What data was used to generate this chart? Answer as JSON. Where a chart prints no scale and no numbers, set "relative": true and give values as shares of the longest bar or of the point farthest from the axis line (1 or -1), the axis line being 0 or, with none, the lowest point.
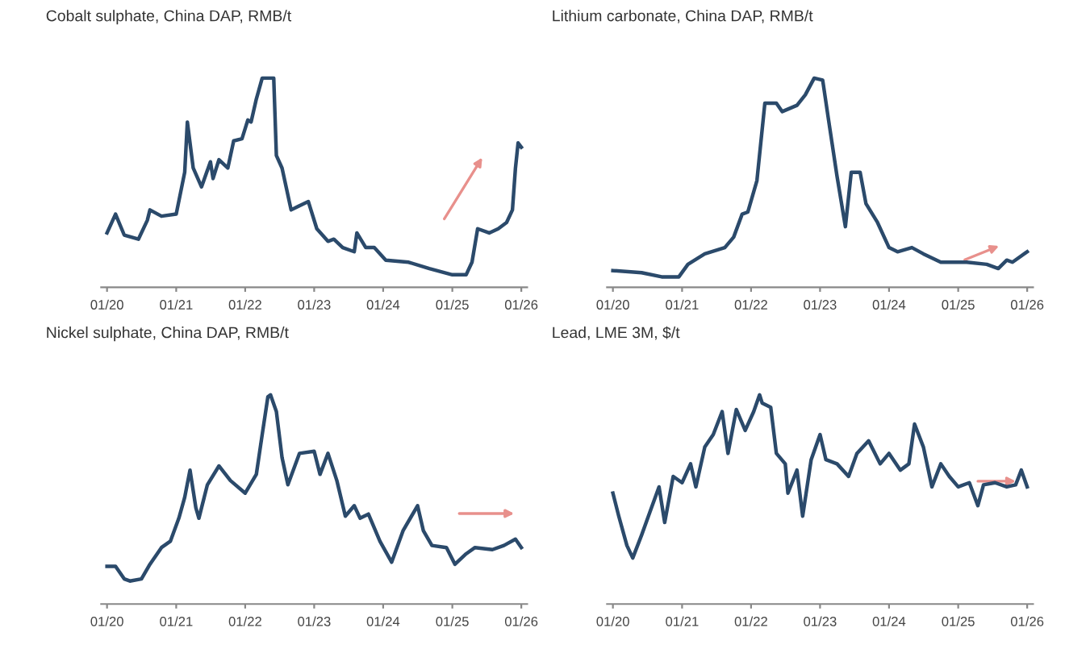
{
  "chart_data": [
    {
      "type": "line",
      "title": "Cobalt sulphate, China DAP, RMB/t",
      "relative": true,
      "xlim": [
        "2019-12-01",
        "2026-02-01"
      ],
      "xticks": [
        {
          "value": "2020-01-01",
          "label": "01/20"
        },
        {
          "value": "2021-01-01",
          "label": "01/21"
        },
        {
          "value": "2022-01-01",
          "label": "01/22"
        },
        {
          "value": "2023-01-01",
          "label": "01/23"
        },
        {
          "value": "2024-01-01",
          "label": "01/24"
        },
        {
          "value": "2025-01-01",
          "label": "01/25"
        },
        {
          "value": "2026-01-01",
          "label": "01/26"
        }
      ],
      "tick_labels": "x",
      "series": [
        {
          "color": "#2b4a6b",
          "x": [
            "2020-01-01",
            "2020-02-15",
            "2020-04-01",
            "2020-06-15",
            "2020-08-01",
            "2020-08-15",
            "2020-10-15",
            "2021-01-01",
            "2021-02-15",
            "2021-03-01",
            "2021-04-01",
            "2021-05-15",
            "2021-07-01",
            "2021-07-15",
            "2021-08-15",
            "2021-10-01",
            "2021-11-01",
            "2021-12-15",
            "2022-01-15",
            "2022-02-01",
            "2022-03-01",
            "2022-04-01",
            "2022-06-01",
            "2022-06-15",
            "2022-07-15",
            "2022-09-01",
            "2022-10-15",
            "2022-12-01",
            "2023-01-15",
            "2023-03-15",
            "2023-04-15",
            "2023-06-01",
            "2023-08-01",
            "2023-08-15",
            "2023-10-01",
            "2023-11-15",
            "2024-01-15",
            "2024-05-15",
            "2024-09-01",
            "2025-01-01",
            "2025-03-15",
            "2025-04-15",
            "2025-05-15",
            "2025-07-15",
            "2025-09-01",
            "2025-10-15",
            "2025-11-15",
            "2025-12-01",
            "2025-12-15",
            "2026-01-01"
          ],
          "values": [
            0.26,
            0.35,
            0.25,
            0.23,
            0.32,
            0.37,
            0.34,
            0.35,
            0.55,
            0.79,
            0.57,
            0.48,
            0.6,
            0.52,
            0.61,
            0.57,
            0.7,
            0.71,
            0.8,
            0.79,
            0.9,
            1.0,
            1.0,
            0.63,
            0.57,
            0.37,
            0.39,
            0.41,
            0.28,
            0.22,
            0.23,
            0.19,
            0.17,
            0.26,
            0.19,
            0.19,
            0.13,
            0.12,
            0.09,
            0.06,
            0.06,
            0.12,
            0.28,
            0.26,
            0.28,
            0.31,
            0.37,
            0.57,
            0.69,
            0.67
          ]
        }
      ]
    },
    {
      "type": "line",
      "title": "Lithium carbonate, China DAP, RMB/t",
      "relative": true,
      "xlim": [
        "2019-12-01",
        "2026-02-01"
      ],
      "xticks": [
        {
          "value": "2020-01-01",
          "label": "01/20"
        },
        {
          "value": "2021-01-01",
          "label": "01/21"
        },
        {
          "value": "2022-01-01",
          "label": "01/22"
        },
        {
          "value": "2023-01-01",
          "label": "01/23"
        },
        {
          "value": "2024-01-01",
          "label": "01/24"
        },
        {
          "value": "2025-01-01",
          "label": "01/25"
        },
        {
          "value": "2026-01-01",
          "label": "01/26"
        }
      ],
      "tick_labels": "x",
      "series": [
        {
          "color": "#2b4a6b",
          "x": [
            "2020-01-01",
            "2020-06-01",
            "2020-09-15",
            "2020-12-15",
            "2021-02-01",
            "2021-05-01",
            "2021-08-15",
            "2021-10-01",
            "2021-11-15",
            "2021-12-15",
            "2022-02-01",
            "2022-03-15",
            "2022-05-15",
            "2022-06-15",
            "2022-09-01",
            "2022-10-15",
            "2022-12-01",
            "2023-01-15",
            "2023-02-15",
            "2023-04-01",
            "2023-05-15",
            "2023-06-15",
            "2023-08-01",
            "2023-09-01",
            "2023-11-01",
            "2024-01-01",
            "2024-02-15",
            "2024-05-01",
            "2024-07-01",
            "2024-10-01",
            "2025-02-15",
            "2025-06-01",
            "2025-08-01",
            "2025-09-15",
            "2025-10-15",
            "2026-01-01"
          ],
          "values": [
            0.08,
            0.07,
            0.05,
            0.05,
            0.11,
            0.16,
            0.19,
            0.24,
            0.35,
            0.36,
            0.51,
            0.88,
            0.88,
            0.84,
            0.87,
            0.92,
            1.0,
            0.99,
            0.8,
            0.53,
            0.29,
            0.55,
            0.55,
            0.4,
            0.31,
            0.19,
            0.17,
            0.19,
            0.16,
            0.12,
            0.12,
            0.11,
            0.09,
            0.13,
            0.12,
            0.17
          ]
        }
      ]
    },
    {
      "type": "line",
      "title": "Nickel sulphate, China DAP, RMB/t",
      "relative": true,
      "xlim": [
        "2019-12-01",
        "2026-02-01"
      ],
      "xticks": [
        {
          "value": "2020-01-01",
          "label": "01/20"
        },
        {
          "value": "2021-01-01",
          "label": "01/21"
        },
        {
          "value": "2022-01-01",
          "label": "01/22"
        },
        {
          "value": "2023-01-01",
          "label": "01/23"
        },
        {
          "value": "2024-01-01",
          "label": "01/24"
        },
        {
          "value": "2025-01-01",
          "label": "01/25"
        },
        {
          "value": "2026-01-01",
          "label": "01/26"
        }
      ],
      "tick_labels": "x",
      "series": [
        {
          "color": "#2b4a6b",
          "x": [
            "2020-01-01",
            "2020-02-15",
            "2020-04-01",
            "2020-05-01",
            "2020-07-01",
            "2020-08-15",
            "2020-10-15",
            "2020-12-01",
            "2021-01-15",
            "2021-02-15",
            "2021-03-15",
            "2021-04-15",
            "2021-05-01",
            "2021-06-15",
            "2021-08-15",
            "2021-10-15",
            "2022-01-01",
            "2022-03-01",
            "2022-04-01",
            "2022-05-01",
            "2022-05-15",
            "2022-06-15",
            "2022-07-15",
            "2022-08-15",
            "2022-10-15",
            "2023-01-01",
            "2023-02-01",
            "2023-03-15",
            "2023-05-01",
            "2023-06-15",
            "2023-08-01",
            "2023-09-01",
            "2023-10-15",
            "2023-12-15",
            "2024-02-15",
            "2024-04-15",
            "2024-07-01",
            "2024-08-01",
            "2024-09-15",
            "2024-12-01",
            "2025-01-15",
            "2025-03-15",
            "2025-05-01",
            "2025-08-01",
            "2025-10-01",
            "2025-12-01",
            "2026-01-01"
          ],
          "values": [
            0.18,
            0.18,
            0.12,
            0.11,
            0.12,
            0.19,
            0.27,
            0.3,
            0.41,
            0.51,
            0.64,
            0.46,
            0.41,
            0.57,
            0.66,
            0.59,
            0.53,
            0.62,
            0.81,
            0.99,
            1.0,
            0.92,
            0.7,
            0.57,
            0.72,
            0.73,
            0.62,
            0.72,
            0.59,
            0.42,
            0.47,
            0.41,
            0.43,
            0.3,
            0.2,
            0.35,
            0.47,
            0.35,
            0.28,
            0.27,
            0.19,
            0.24,
            0.27,
            0.26,
            0.28,
            0.31,
            0.27
          ]
        }
      ]
    },
    {
      "type": "line",
      "title": "Lead, LME 3M, $/t",
      "relative": true,
      "xlim": [
        "2019-12-01",
        "2026-02-01"
      ],
      "xticks": [
        {
          "value": "2020-01-01",
          "label": "01/20"
        },
        {
          "value": "2021-01-01",
          "label": "01/21"
        },
        {
          "value": "2022-01-01",
          "label": "01/22"
        },
        {
          "value": "2023-01-01",
          "label": "01/23"
        },
        {
          "value": "2024-01-01",
          "label": "01/24"
        },
        {
          "value": "2025-01-01",
          "label": "01/25"
        },
        {
          "value": "2026-01-01",
          "label": "01/26"
        }
      ],
      "tick_labels": "x",
      "series": [
        {
          "color": "#2b4a6b",
          "x": [
            "2020-01-01",
            "2020-02-01",
            "2020-03-15",
            "2020-04-15",
            "2020-06-01",
            "2020-07-15",
            "2020-09-01",
            "2020-10-01",
            "2020-11-15",
            "2021-01-01",
            "2021-02-15",
            "2021-03-15",
            "2021-05-01",
            "2021-06-15",
            "2021-08-01",
            "2021-09-01",
            "2021-10-15",
            "2021-12-01",
            "2022-01-15",
            "2022-02-15",
            "2022-03-01",
            "2022-04-15",
            "2022-05-15",
            "2022-07-01",
            "2022-07-15",
            "2022-09-01",
            "2022-10-01",
            "2022-11-15",
            "2023-01-01",
            "2023-02-01",
            "2023-04-01",
            "2023-06-01",
            "2023-07-15",
            "2023-09-15",
            "2023-11-15",
            "2024-01-01",
            "2024-03-01",
            "2024-04-15",
            "2024-05-15",
            "2024-07-01",
            "2024-08-15",
            "2024-10-01",
            "2024-11-15",
            "2025-01-01",
            "2025-03-01",
            "2025-04-15",
            "2025-05-15",
            "2025-07-15",
            "2025-09-15",
            "2025-11-01",
            "2025-12-01",
            "2026-01-01"
          ],
          "values": [
            0.53,
            0.42,
            0.28,
            0.22,
            0.33,
            0.44,
            0.56,
            0.39,
            0.61,
            0.58,
            0.67,
            0.56,
            0.75,
            0.81,
            0.92,
            0.72,
            0.93,
            0.83,
            0.92,
            1.0,
            0.96,
            0.94,
            0.72,
            0.67,
            0.53,
            0.64,
            0.42,
            0.69,
            0.81,
            0.69,
            0.67,
            0.61,
            0.72,
            0.78,
            0.67,
            0.72,
            0.64,
            0.67,
            0.86,
            0.75,
            0.56,
            0.67,
            0.61,
            0.56,
            0.58,
            0.47,
            0.57,
            0.58,
            0.56,
            0.57,
            0.64,
            0.56
          ]
        }
      ]
    }
  ]
}
